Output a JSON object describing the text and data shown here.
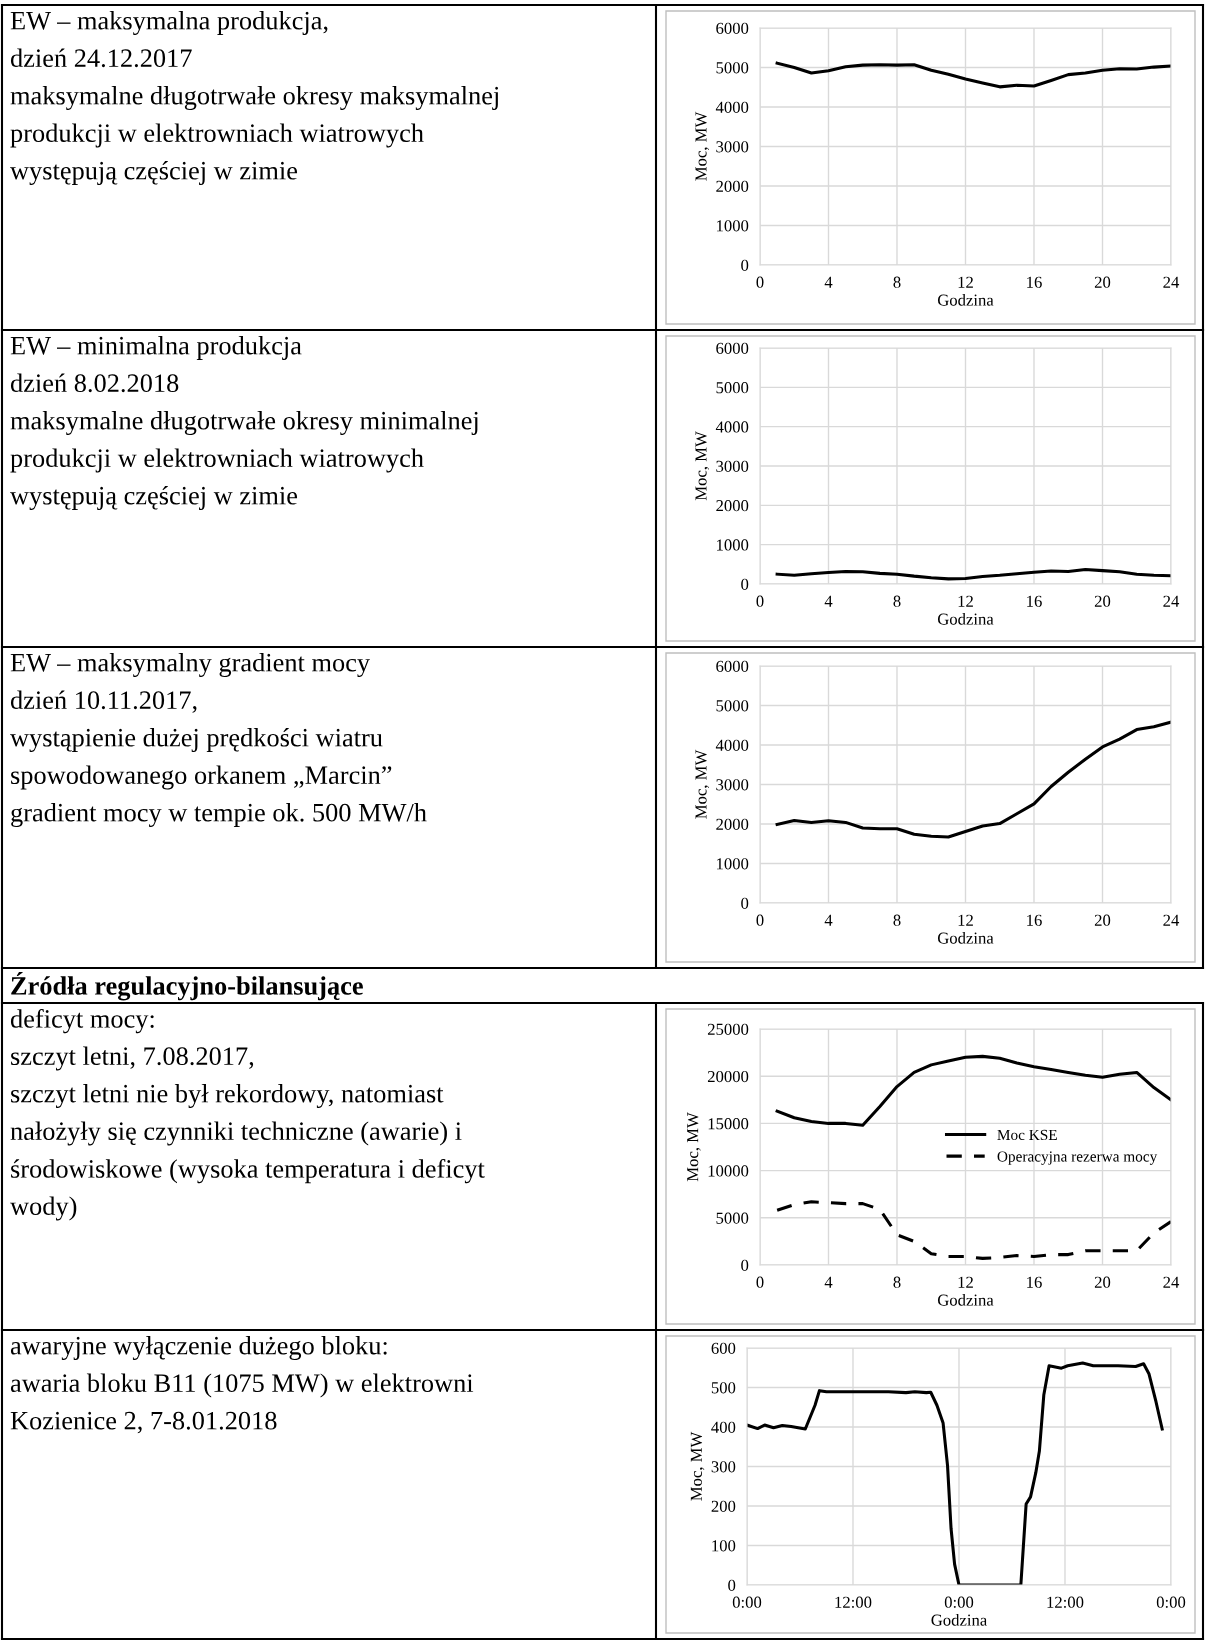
{
  "chart_data": [
    {
      "type": "other",
      "annotations": [
        "EW – maksymalna produkcja,",
        "dzień 24.12.2017",
        "maksymalne długotrwałe okresy maksymalnej",
        "produkcji w elektrowniach wiatrowych",
        "występują częściej w zimie"
      ]
    },
    {
      "type": "line",
      "xlabel": "Godzina",
      "ylabel": "Moc, MW",
      "x": [
        1,
        2,
        3,
        4,
        5,
        6,
        7,
        8,
        9,
        10,
        11,
        12,
        13,
        14,
        15,
        16,
        17,
        18,
        19,
        20,
        21,
        22,
        23,
        24
      ],
      "xlim": [
        0,
        24
      ],
      "xticks": [
        0,
        4,
        8,
        12,
        16,
        20,
        24
      ],
      "ylim": [
        0,
        6000
      ],
      "yticks": [
        0,
        1000,
        2000,
        3000,
        4000,
        5000,
        6000
      ],
      "grid": true,
      "series": [
        {
          "color": "#000000",
          "line_style": "solid",
          "values": [
            5110,
            5000,
            4860,
            4920,
            5020,
            5060,
            5070,
            5060,
            5070,
            4930,
            4830,
            4710,
            4610,
            4510,
            4550,
            4530,
            4670,
            4820,
            4860,
            4930,
            4970,
            4960,
            5010,
            5040
          ]
        }
      ]
    },
    {
      "type": "other",
      "annotations": [
        "EW – minimalna produkcja",
        "dzień 8.02.2018",
        "maksymalne długotrwałe okresy minimalnej",
        "produkcji w elektrowniach wiatrowych",
        "występują częściej w zimie"
      ]
    },
    {
      "type": "line",
      "xlabel": "Godzina",
      "ylabel": "Moc, MW",
      "x": [
        1,
        2,
        3,
        4,
        5,
        6,
        7,
        8,
        9,
        10,
        11,
        12,
        13,
        14,
        15,
        16,
        17,
        18,
        19,
        20,
        21,
        22,
        23,
        24
      ],
      "xlim": [
        0,
        24
      ],
      "xticks": [
        0,
        4,
        8,
        12,
        16,
        20,
        24
      ],
      "ylim": [
        0,
        6000
      ],
      "yticks": [
        0,
        1000,
        2000,
        3000,
        4000,
        5000,
        6000
      ],
      "grid": true,
      "series": [
        {
          "color": "#000000",
          "line_style": "solid",
          "values": [
            250,
            220,
            260,
            290,
            320,
            310,
            270,
            250,
            200,
            160,
            130,
            140,
            190,
            220,
            260,
            300,
            330,
            320,
            370,
            340,
            310,
            250,
            220,
            210
          ]
        }
      ]
    },
    {
      "type": "other",
      "annotations": [
        "EW – maksymalny gradient mocy",
        "dzień 10.11.2017,",
        "wystąpienie dużej prędkości wiatru",
        "spowodowanego orkanem „Marcin”",
        "gradient mocy w tempie ok. 500 MW/h"
      ]
    },
    {
      "type": "line",
      "xlabel": "Godzina",
      "ylabel": "Moc, MW",
      "x": [
        1,
        2,
        3,
        4,
        5,
        6,
        7,
        8,
        9,
        10,
        11,
        12,
        13,
        14,
        15,
        16,
        17,
        18,
        19,
        20,
        21,
        22,
        23,
        24
      ],
      "xlim": [
        0,
        24
      ],
      "xticks": [
        0,
        4,
        8,
        12,
        16,
        20,
        24
      ],
      "ylim": [
        0,
        6000
      ],
      "yticks": [
        0,
        1000,
        2000,
        3000,
        4000,
        5000,
        6000
      ],
      "grid": true,
      "series": [
        {
          "color": "#000000",
          "line_style": "solid",
          "values": [
            1990,
            2090,
            2040,
            2080,
            2040,
            1900,
            1880,
            1880,
            1740,
            1690,
            1670,
            1810,
            1950,
            2010,
            2260,
            2510,
            2950,
            3310,
            3640,
            3950,
            4150,
            4390,
            4460,
            4580
          ]
        }
      ]
    },
    {
      "type": "other",
      "title": "Źródła regulacyjno-bilansujące"
    },
    {
      "type": "other",
      "annotations": [
        "deficyt mocy:",
        "szczyt letni, 7.08.2017,",
        "szczyt letni nie był rekordowy, natomiast",
        "nałożyły się czynniki techniczne (awarie) i",
        "środowiskowe (wysoka temperatura i deficyt",
        "wody)"
      ]
    },
    {
      "type": "line",
      "xlabel": "Godzina",
      "ylabel": "Moc, MW",
      "x": [
        1,
        2,
        3,
        4,
        5,
        6,
        7,
        8,
        9,
        10,
        11,
        12,
        13,
        14,
        15,
        16,
        17,
        18,
        19,
        20,
        21,
        22,
        23,
        24
      ],
      "xlim": [
        0,
        24
      ],
      "xticks": [
        0,
        4,
        8,
        12,
        16,
        20,
        24
      ],
      "ylim": [
        0,
        25000
      ],
      "yticks": [
        0,
        5000,
        10000,
        15000,
        20000,
        25000
      ],
      "grid": true,
      "legend": "right",
      "series": [
        {
          "name": "Moc KSE",
          "color": "#000000",
          "line_style": "solid",
          "values": [
            16300,
            15600,
            15200,
            15000,
            15000,
            14800,
            16800,
            18900,
            20400,
            21200,
            21600,
            22000,
            22100,
            21900,
            21400,
            21000,
            20700,
            20400,
            20100,
            19900,
            20200,
            20400,
            18800,
            17500
          ]
        },
        {
          "name": "Operacyjna rezerwa mocy",
          "color": "#000000",
          "line_style": "dashed",
          "values": [
            5800,
            6400,
            6700,
            6600,
            6500,
            6500,
            5900,
            3200,
            2500,
            1200,
            900,
            900,
            700,
            800,
            1000,
            900,
            1100,
            1100,
            1500,
            1500,
            1500,
            1500,
            3400,
            4600
          ]
        }
      ]
    },
    {
      "type": "other",
      "annotations": [
        "awaryjne wyłączenie dużego bloku:",
        "awaria bloku B11 (1075 MW) w elektrowni",
        "Kozienice 2, 7-8.01.2018"
      ]
    },
    {
      "type": "line",
      "xlabel": "Godzina",
      "ylabel": "Moc, MW",
      "xlim": [
        "2018-01-07T00:00",
        "2018-01-09T00:00"
      ],
      "xticks": [
        {
          "value": "2018-01-07T00:00",
          "label": "0:00"
        },
        {
          "value": "2018-01-07T12:00",
          "label": "12:00"
        },
        {
          "value": "2018-01-08T00:00",
          "label": "0:00"
        },
        {
          "value": "2018-01-08T12:00",
          "label": "12:00"
        },
        {
          "value": "2018-01-09T00:00",
          "label": "0:00"
        }
      ],
      "ylim": [
        0,
        600
      ],
      "yticks": [
        0,
        100,
        200,
        300,
        400,
        500,
        600
      ],
      "grid": true,
      "series": [
        {
          "color": "#000000",
          "line_style": "solid",
          "x": [
            "2018-01-07T00:00",
            "2018-01-07T01:12",
            "2018-01-07T02:00",
            "2018-01-07T03:00",
            "2018-01-07T04:00",
            "2018-01-07T05:00",
            "2018-01-07T06:36",
            "2018-01-07T07:42",
            "2018-01-07T08:12",
            "2018-01-07T09:00",
            "2018-01-07T12:00",
            "2018-01-07T16:00",
            "2018-01-07T18:00",
            "2018-01-07T19:00",
            "2018-01-07T20:18",
            "2018-01-07T20:48",
            "2018-01-07T21:30",
            "2018-01-07T22:12",
            "2018-01-07T22:42",
            "2018-01-07T23:06",
            "2018-01-07T23:30",
            "2018-01-08T00:00",
            "2018-01-08T01:00",
            "2018-01-08T06:00",
            "2018-01-08T07:00",
            "2018-01-08T07:36",
            "2018-01-08T08:06",
            "2018-01-08T08:42",
            "2018-01-08T09:06",
            "2018-01-08T09:36",
            "2018-01-08T10:12",
            "2018-01-08T11:36",
            "2018-01-08T12:18",
            "2018-01-08T14:00",
            "2018-01-08T15:12",
            "2018-01-08T18:00",
            "2018-01-08T20:00",
            "2018-01-08T20:54",
            "2018-01-08T21:30",
            "2018-01-08T22:18",
            "2018-01-08T23:00"
          ],
          "values": [
            405,
            396,
            405,
            398,
            404,
            401,
            395,
            455,
            492,
            489,
            489,
            489,
            487,
            489,
            487,
            488,
            455,
            410,
            303,
            143,
            53,
            0,
            0,
            0,
            0,
            205,
            223,
            285,
            339,
            481,
            555,
            549,
            555,
            562,
            555,
            555,
            553,
            560,
            535,
            464,
            395
          ]
        }
      ]
    }
  ]
}
